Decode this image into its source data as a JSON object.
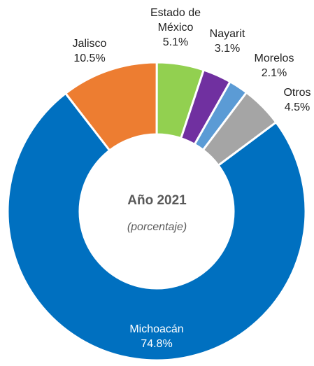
{
  "chart_data": {
    "type": "donut",
    "title": "Año 2021",
    "subtitle": "(porcentaje)",
    "categories": [
      "Michoacán",
      "Jalisco",
      "Estado de México",
      "Nayarit",
      "Morelos",
      "Otros"
    ],
    "values": [
      74.8,
      10.5,
      5.1,
      3.1,
      2.1,
      4.5
    ],
    "value_labels": [
      "74.8%",
      "10.5%",
      "5.1%",
      "3.1%",
      "2.1%",
      "4.5%"
    ],
    "colors": [
      "#0070c0",
      "#ed7d31",
      "#92d050",
      "#7030a0",
      "#5b9bd5",
      "#a5a5a5"
    ]
  }
}
